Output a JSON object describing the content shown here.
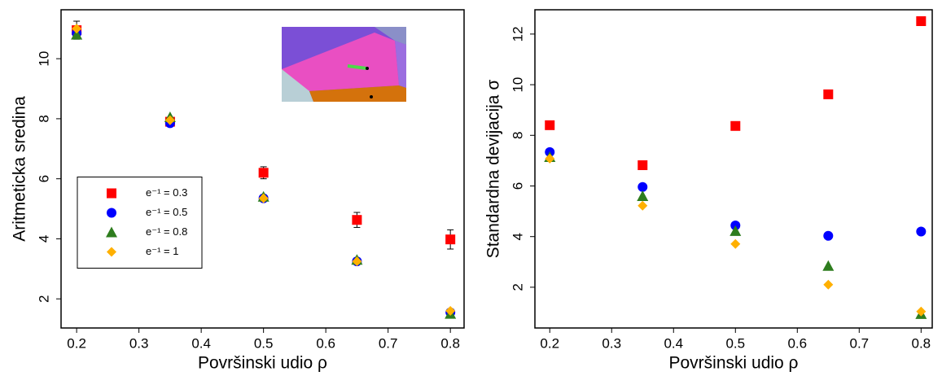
{
  "chart_data": [
    {
      "type": "scatter",
      "xlabel": "Površinski udio ρ",
      "ylabel": "Aritmeticka sredina",
      "x": [
        0.2,
        0.35,
        0.5,
        0.65,
        0.8
      ],
      "xlim": [
        0.175,
        0.822
      ],
      "xticks": [
        0.2,
        0.3,
        0.4,
        0.5,
        0.6,
        0.7,
        0.8
      ],
      "ylim": [
        1.03,
        11.63
      ],
      "yticks": [
        2,
        4,
        6,
        8,
        10
      ],
      "legend": "center-left",
      "series": [
        {
          "name": "e⁻¹ = 0.3",
          "color": "#ff0000",
          "marker": "square",
          "values": [
            10.95,
            7.9,
            6.2,
            4.63,
            3.98
          ],
          "errors": [
            0.3,
            0.15,
            0.2,
            0.25,
            0.32
          ]
        },
        {
          "name": "e⁻¹ = 0.5",
          "color": "#0000ff",
          "marker": "circle",
          "values": [
            10.85,
            7.85,
            5.35,
            3.25,
            1.55
          ]
        },
        {
          "name": "e⁻¹ = 0.8",
          "color": "#2e7d1e",
          "marker": "triangle",
          "values": [
            10.8,
            8.05,
            5.4,
            3.3,
            1.5
          ]
        },
        {
          "name": "e⁻¹ = 1",
          "color": "#ffb000",
          "marker": "diamond",
          "values": [
            11.0,
            7.95,
            5.35,
            3.25,
            1.6
          ]
        }
      ]
    },
    {
      "type": "scatter",
      "xlabel": "Površinski udio ρ",
      "ylabel": "Standardna devijacija σ",
      "x": [
        0.2,
        0.35,
        0.5,
        0.65,
        0.8
      ],
      "xlim": [
        0.176,
        0.818
      ],
      "xticks": [
        0.2,
        0.3,
        0.4,
        0.5,
        0.6,
        0.7,
        0.8
      ],
      "ylim": [
        0.39,
        12.96
      ],
      "yticks": [
        2,
        4,
        6,
        8,
        10,
        12
      ],
      "series": [
        {
          "name": "e⁻¹ = 0.3",
          "color": "#ff0000",
          "marker": "square",
          "values": [
            8.4,
            6.82,
            8.37,
            9.62,
            12.51
          ]
        },
        {
          "name": "e⁻¹ = 0.5",
          "color": "#0000ff",
          "marker": "circle",
          "values": [
            7.34,
            5.96,
            4.44,
            4.03,
            4.2
          ]
        },
        {
          "name": "e⁻¹ = 0.8",
          "color": "#2e7d1e",
          "marker": "triangle",
          "values": [
            7.14,
            5.6,
            4.22,
            2.84,
            0.94
          ]
        },
        {
          "name": "e⁻¹ = 1",
          "color": "#ffb000",
          "marker": "diamond",
          "values": [
            7.08,
            5.22,
            3.71,
            2.1,
            1.04
          ]
        }
      ]
    }
  ]
}
